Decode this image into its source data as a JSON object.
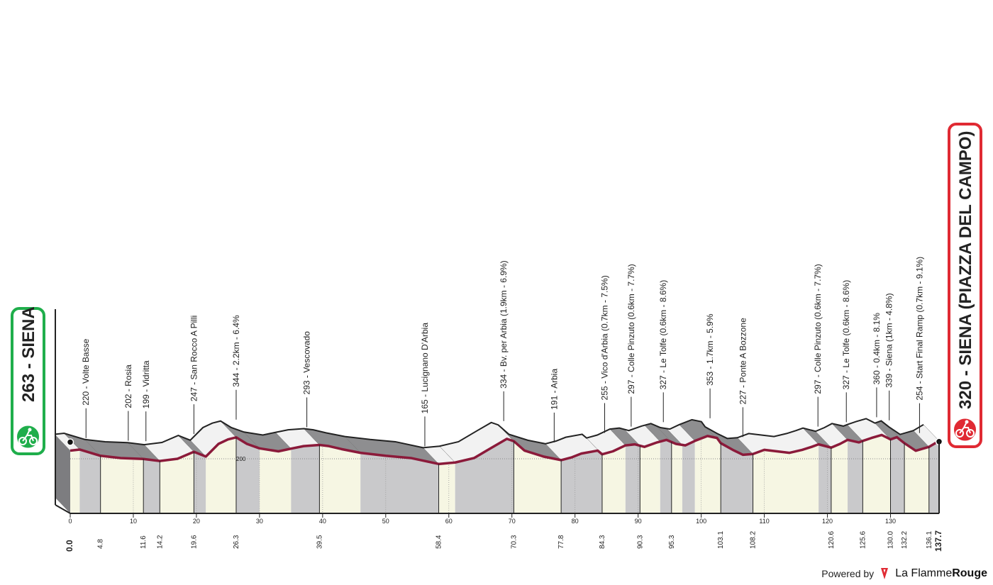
{
  "chart_data": {
    "type": "area",
    "start": {
      "altitude": "263",
      "name": "SIENA"
    },
    "finish": {
      "altitude": "320",
      "name": "SIENA (PIAZZA DEL CAMPO)"
    },
    "km_ticks": [
      0,
      10,
      20,
      30,
      40,
      50,
      60,
      70,
      80,
      90,
      100,
      110,
      120,
      130
    ],
    "total_km": 137.7,
    "altitude_ref": {
      "value": 200,
      "label": "200"
    },
    "profile": [
      [
        0,
        255
      ],
      [
        1.5,
        262
      ],
      [
        4.8,
        220
      ],
      [
        8,
        205
      ],
      [
        11.6,
        199
      ],
      [
        14.2,
        185
      ],
      [
        17,
        200
      ],
      [
        19.6,
        247
      ],
      [
        21.5,
        215
      ],
      [
        23.5,
        300
      ],
      [
        25,
        330
      ],
      [
        26.3,
        344
      ],
      [
        28,
        300
      ],
      [
        30,
        270
      ],
      [
        33,
        250
      ],
      [
        35,
        268
      ],
      [
        37,
        285
      ],
      [
        39.5,
        293
      ],
      [
        41,
        285
      ],
      [
        43,
        265
      ],
      [
        46,
        240
      ],
      [
        50,
        220
      ],
      [
        54,
        205
      ],
      [
        58.4,
        165
      ],
      [
        61,
        175
      ],
      [
        64,
        205
      ],
      [
        67,
        280
      ],
      [
        69.2,
        334
      ],
      [
        70.3,
        318
      ],
      [
        72,
        255
      ],
      [
        75,
        215
      ],
      [
        77.8,
        191
      ],
      [
        79.5,
        210
      ],
      [
        81,
        235
      ],
      [
        83.6,
        255
      ],
      [
        84.3,
        230
      ],
      [
        86,
        250
      ],
      [
        88,
        290
      ],
      [
        89.5,
        297
      ],
      [
        91,
        280
      ],
      [
        93,
        310
      ],
      [
        94.5,
        327
      ],
      [
        96,
        300
      ],
      [
        97.5,
        290
      ],
      [
        99,
        320
      ],
      [
        101,
        353
      ],
      [
        102.5,
        340
      ],
      [
        103.1,
        305
      ],
      [
        105,
        260
      ],
      [
        106.6,
        227
      ],
      [
        108.2,
        232
      ],
      [
        110,
        260
      ],
      [
        112,
        250
      ],
      [
        114,
        240
      ],
      [
        116,
        260
      ],
      [
        117.5,
        280
      ],
      [
        118.6,
        297
      ],
      [
        120.6,
        275
      ],
      [
        122,
        300
      ],
      [
        123.2,
        327
      ],
      [
        125,
        310
      ],
      [
        125.6,
        320
      ],
      [
        127,
        340
      ],
      [
        128.6,
        360
      ],
      [
        129.6,
        339
      ],
      [
        130,
        330
      ],
      [
        131,
        345
      ],
      [
        132.2,
        305
      ],
      [
        134,
        254
      ],
      [
        136.1,
        280
      ],
      [
        137.7,
        320
      ]
    ],
    "segments": [
      [
        0,
        1.5
      ],
      [
        1.5,
        4.8
      ],
      [
        4.8,
        11.6
      ],
      [
        11.6,
        14.2
      ],
      [
        14.2,
        19.6
      ],
      [
        19.6,
        21.5
      ],
      [
        21.5,
        26.3
      ],
      [
        26.3,
        30
      ],
      [
        30,
        35
      ],
      [
        35,
        39.5
      ],
      [
        39.5,
        46
      ],
      [
        46,
        58.4
      ],
      [
        58.4,
        61
      ],
      [
        61,
        70.3
      ],
      [
        70.3,
        77.8
      ],
      [
        77.8,
        84.3
      ],
      [
        84.3,
        88
      ],
      [
        88,
        90.3
      ],
      [
        90.3,
        93.5
      ],
      [
        93.5,
        95.3
      ],
      [
        95.3,
        97
      ],
      [
        97,
        99
      ],
      [
        99,
        103.1
      ],
      [
        103.1,
        108.2
      ],
      [
        108.2,
        118.6
      ],
      [
        118.6,
        120.6
      ],
      [
        120.6,
        123.2
      ],
      [
        123.2,
        125.6
      ],
      [
        125.6,
        130
      ],
      [
        130,
        132.2
      ],
      [
        132.2,
        136.1
      ],
      [
        136.1,
        137.7
      ]
    ],
    "km_markers": [
      {
        "km": 0.0,
        "label": "0.0"
      },
      {
        "km": 4.8,
        "label": "4.8"
      },
      {
        "km": 11.6,
        "label": "11.6"
      },
      {
        "km": 14.2,
        "label": "14.2"
      },
      {
        "km": 19.6,
        "label": "19.6"
      },
      {
        "km": 26.3,
        "label": "26.3"
      },
      {
        "km": 39.5,
        "label": "39.5"
      },
      {
        "km": 58.4,
        "label": "58.4"
      },
      {
        "km": 70.3,
        "label": "70.3"
      },
      {
        "km": 77.8,
        "label": "77.8"
      },
      {
        "km": 84.3,
        "label": "84.3"
      },
      {
        "km": 90.3,
        "label": "90.3"
      },
      {
        "km": 95.3,
        "label": "95.3"
      },
      {
        "km": 103.1,
        "label": "103.1"
      },
      {
        "km": 108.2,
        "label": "108.2"
      },
      {
        "km": 120.6,
        "label": "120.6"
      },
      {
        "km": 125.6,
        "label": "125.6"
      },
      {
        "km": 130.0,
        "label": "130.0"
      },
      {
        "km": 132.2,
        "label": "132.2"
      },
      {
        "km": 136.1,
        "label": "136.1"
      },
      {
        "km": 137.7,
        "label": "137.7"
      }
    ],
    "waypoints": [
      {
        "km": 2.5,
        "alt": 220,
        "label": "220 - Volte Basse"
      },
      {
        "km": 9.2,
        "alt": 202,
        "label": "202 - Rosia"
      },
      {
        "km": 12.0,
        "alt": 199,
        "label": "199 - Vidritta"
      },
      {
        "km": 19.6,
        "alt": 247,
        "label": "247 - San Rocco A Pilli"
      },
      {
        "km": 26.3,
        "alt": 344,
        "label": "344 - 2.2km - 6.4%"
      },
      {
        "km": 37.5,
        "alt": 293,
        "label": "293 - Vescovado"
      },
      {
        "km": 56.2,
        "alt": 165,
        "label": "165 - Lucignano D'Arbia"
      },
      {
        "km": 68.7,
        "alt": 334,
        "label": "334 - Bv. per Arbia (1.9km - 6.9%)"
      },
      {
        "km": 76.7,
        "alt": 191,
        "label": "191 - Arbia"
      },
      {
        "km": 84.7,
        "alt": 255,
        "label": "255 - Vico d'Arbia (0.7km - 7.5%)"
      },
      {
        "km": 88.9,
        "alt": 297,
        "label": "297 - Colle Pinzuto (0.6km - 7.7%)"
      },
      {
        "km": 94.0,
        "alt": 327,
        "label": "327 - Le Tolfe (0.6km - 8.6%)"
      },
      {
        "km": 101.4,
        "alt": 353,
        "label": "353 - 1.7km - 5.9%"
      },
      {
        "km": 106.6,
        "alt": 227,
        "label": "227 - Ponte A Bozzone"
      },
      {
        "km": 118.5,
        "alt": 297,
        "label": "297 - Colle Pinzuto (0.6km - 7.7%)"
      },
      {
        "km": 123.0,
        "alt": 327,
        "label": "327 - Le Tolfe (0.6km - 8.6%)"
      },
      {
        "km": 127.8,
        "alt": 360,
        "label": "360 - 0.4km - 8.1%"
      },
      {
        "km": 129.8,
        "alt": 339,
        "label": "339 - Siena (1km - 4.8%)"
      },
      {
        "km": 134.6,
        "alt": 254,
        "label": "254 - Start Final Ramp (0.7km - 9.1%)"
      }
    ]
  },
  "footer": {
    "powered_by": "Powered by",
    "brand_regular": "La Flamme",
    "brand_bold": "Rouge"
  },
  "colors": {
    "route_line": "#8b1a3a",
    "start_badge": "#1fae4b",
    "finish_badge": "#e02a33",
    "base_fill": "#f6f6e3",
    "band_gray": "#c9c9cb",
    "band_dark": "#7d7d80"
  }
}
